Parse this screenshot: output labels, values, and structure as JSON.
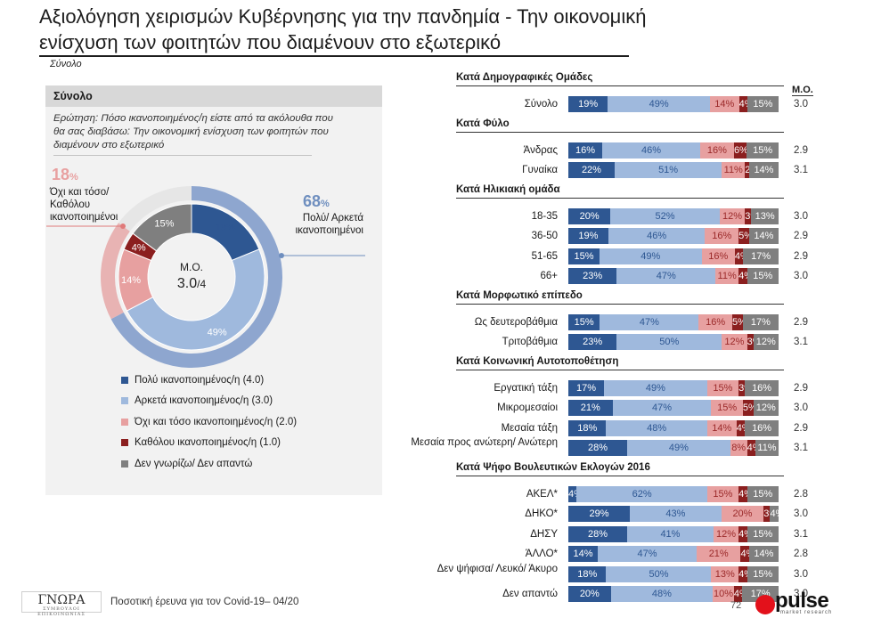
{
  "title_line1": "Αξιολόγηση χειρισμών Κυβέρνησης για την πανδημία - Την οικονομική",
  "title_line2": "ενίσχυση των φοιτητών που διαμένουν στο εξωτερικό",
  "subnote": "Σύνολο",
  "panel": {
    "header": "Σύνολο",
    "question_line1": "Ερώτηση: Πόσο ικανοποιημένος/η είστε από τα ακόλουθα που",
    "question_line2": "θα σας διαβάσω: Την οικονομική ενίσχυση των φοιτητών που",
    "question_line3": "διαμένουν στο εξωτερικό",
    "left_pct": "18",
    "left_pct_sign": "%",
    "left_label_line1": "Όχι και τόσο/",
    "left_label_line2": "Καθόλου",
    "left_label_line3": "ικανοποιημένοι",
    "right_pct": "68",
    "right_pct_sign": "%",
    "right_label_line1": "Πολύ/ Αρκετά",
    "right_label_line2": "ικανοποιημένοι",
    "center_label": "Μ.Ο.",
    "center_value": "3.0",
    "center_scale": "/4"
  },
  "colors": {
    "very": "#2e5792",
    "fairly": "#9fb9dd",
    "notso": "#e7a0a0",
    "notatall": "#8b1f1f",
    "dk": "#7f7f7f",
    "outer_pos": "#8ea6cf",
    "outer_neg": "#e8b3b3",
    "outer_dk": "#e6e6e6"
  },
  "legend": [
    {
      "label": "Πολύ ικανοποιημένος/η (4.0)",
      "color": "#2e5792"
    },
    {
      "label": "Αρκετά ικανοποιημένος/η (3.0)",
      "color": "#9fb9dd"
    },
    {
      "label": "Όχι και τόσο ικανοποιημένος/η (2.0)",
      "color": "#e7a0a0"
    },
    {
      "label": "Καθόλου ικανοποιημένος/η (1.0)",
      "color": "#8b1f1f"
    },
    {
      "label": "Δεν γνωρίζω/ Δεν απαντώ",
      "color": "#7f7f7f"
    }
  ],
  "mo_header": "Μ.Ο.",
  "chart_data": [
    {
      "type": "pie",
      "categories": [
        "Πολύ ικανοποιημένος/η (4.0)",
        "Αρκετά ικανοποιημένος/η (3.0)",
        "Όχι και τόσο ικανοποιημένος/η (2.0)",
        "Καθόλου ικανοποιημένος/η (1.0)",
        "Δεν γνωρίζω/ Δεν απαντώ"
      ],
      "values": [
        19,
        49,
        14,
        4,
        15
      ],
      "labels": [
        "19%",
        "49%",
        "14%",
        "4%",
        "15%"
      ],
      "outer_ring": {
        "values": [
          68,
          18,
          15
        ]
      }
    },
    {
      "type": "bar",
      "stacked": true,
      "orientation": "horizontal",
      "series_names": [
        "Πολύ ικανοποιημένος/η (4.0)",
        "Αρκετά ικανοποιημένος/η (3.0)",
        "Όχι και τόσο ικανοποιημένος/η (2.0)",
        "Καθόλου ικανοποιημένος/η (1.0)",
        "Δεν γνωρίζω/ Δεν απαντώ"
      ],
      "sections": [
        {
          "title": "Κατά Δημογραφικές Ομάδες",
          "rows": [
            {
              "label": "Σύνολο",
              "values": [
                19,
                49,
                14,
                4,
                15
              ],
              "labels": [
                "19%",
                "49%",
                "14%",
                "4%",
                "15%"
              ],
              "mean": "3.0"
            }
          ]
        },
        {
          "title": "Κατά Φύλο",
          "rows": [
            {
              "label": "Άνδρας",
              "values": [
                16,
                46,
                16,
                6,
                15
              ],
              "labels": [
                "16%",
                "46%",
                "16%",
                "6%",
                "15%"
              ],
              "mean": "2.9"
            },
            {
              "label": "Γυναίκα",
              "values": [
                22,
                51,
                11,
                2,
                14
              ],
              "labels": [
                "22%",
                "51%",
                "11%",
                "2%",
                "14%"
              ],
              "mean": "3.1"
            }
          ]
        },
        {
          "title": "Κατά Ηλικιακή ομάδα",
          "rows": [
            {
              "label": "18-35",
              "values": [
                20,
                52,
                12,
                3,
                13
              ],
              "labels": [
                "20%",
                "52%",
                "12%",
                "3%",
                "13%"
              ],
              "mean": "3.0"
            },
            {
              "label": "36-50",
              "values": [
                19,
                46,
                16,
                5,
                14
              ],
              "labels": [
                "19%",
                "46%",
                "16%",
                "5%",
                "14%"
              ],
              "mean": "2.9"
            },
            {
              "label": "51-65",
              "values": [
                15,
                49,
                16,
                4,
                17
              ],
              "labels": [
                "15%",
                "49%",
                "16%",
                "4%",
                "17%"
              ],
              "mean": "2.9"
            },
            {
              "label": "66+",
              "values": [
                23,
                47,
                11,
                4,
                15
              ],
              "labels": [
                "23%",
                "47%",
                "11%",
                "4%",
                "15%"
              ],
              "mean": "3.0"
            }
          ]
        },
        {
          "title": "Κατά Μορφωτικό επίπεδο",
          "rows": [
            {
              "label": "Ως δευτεροβάθμια",
              "values": [
                15,
                47,
                16,
                5,
                17
              ],
              "labels": [
                "15%",
                "47%",
                "16%",
                "5%",
                "17%"
              ],
              "mean": "2.9"
            },
            {
              "label": "Τριτοβάθμια",
              "values": [
                23,
                50,
                12,
                3,
                12
              ],
              "labels": [
                "23%",
                "50%",
                "12%",
                "3%",
                "12%"
              ],
              "mean": "3.1"
            }
          ]
        },
        {
          "title": "Κατά Κοινωνική Αυτοτοποθέτηση",
          "rows": [
            {
              "label": "Εργατική τάξη",
              "values": [
                17,
                49,
                15,
                3,
                16
              ],
              "labels": [
                "17%",
                "49%",
                "15%",
                "3%",
                "16%"
              ],
              "mean": "2.9"
            },
            {
              "label": "Μικρομεσαίοι",
              "values": [
                21,
                47,
                15,
                5,
                12
              ],
              "labels": [
                "21%",
                "47%",
                "15%",
                "5%",
                "12%"
              ],
              "mean": "3.0"
            },
            {
              "label": "Μεσαία τάξη",
              "values": [
                18,
                48,
                14,
                4,
                16
              ],
              "labels": [
                "18%",
                "48%",
                "14%",
                "4%",
                "16%"
              ],
              "mean": "2.9"
            },
            {
              "label": "Μεσαία προς ανώτερη/ Ανώτερη",
              "values": [
                28,
                49,
                8,
                4,
                11
              ],
              "labels": [
                "28%",
                "49%",
                "8%",
                "4%",
                "11%"
              ],
              "mean": "3.1"
            }
          ]
        },
        {
          "title": "Κατά Ψήφο Βουλευτικών Εκλογών 2016",
          "rows": [
            {
              "label": "ΑΚΕΛ*",
              "values": [
                4,
                62,
                15,
                4,
                15
              ],
              "labels": [
                "4%",
                "62%",
                "15%",
                "4%",
                "15%"
              ],
              "mean": "2.8"
            },
            {
              "label": "ΔΗΚΟ*",
              "values": [
                29,
                43,
                20,
                3,
                4
              ],
              "labels": [
                "29%",
                "43%",
                "20%",
                "3%",
                "4%"
              ],
              "mean": "3.0"
            },
            {
              "label": "ΔΗΣΥ",
              "values": [
                28,
                41,
                12,
                4,
                15
              ],
              "labels": [
                "28%",
                "41%",
                "12%",
                "4%",
                "15%"
              ],
              "mean": "3.1"
            },
            {
              "label": "ΆΛΛΟ*",
              "values": [
                14,
                47,
                21,
                4,
                14
              ],
              "labels": [
                "14%",
                "47%",
                "21%",
                "4%",
                "14%"
              ],
              "mean": "2.8"
            },
            {
              "label": "Δεν ψήφισα/ Λευκό/ Άκυρο",
              "values": [
                18,
                50,
                13,
                4,
                15
              ],
              "labels": [
                "18%",
                "50%",
                "13%",
                "4%",
                "15%"
              ],
              "mean": "3.0"
            },
            {
              "label": "Δεν απαντώ",
              "values": [
                20,
                48,
                10,
                4,
                17
              ],
              "labels": [
                "20%",
                "48%",
                "10%",
                "4%",
                "17%"
              ],
              "mean": "3.0"
            }
          ]
        }
      ]
    }
  ],
  "footer": {
    "logo_text": "ΓΝΩΡΑ",
    "logo_sub": "ΣΥΜΒΟΥΛΟΙ ΕΠΙΚΟΙΝΩΝΙΑΣ",
    "text": "Ποσοτική έρευνα για τον Covid-19– 04/20",
    "page": "72",
    "pulse_word": "pulse",
    "pulse_sub": "market research"
  }
}
